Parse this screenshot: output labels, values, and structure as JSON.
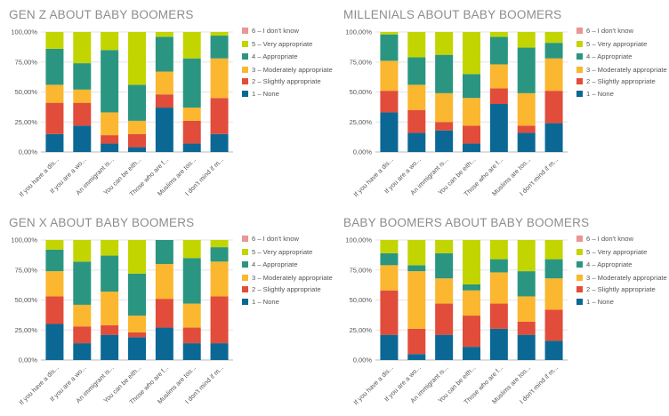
{
  "legend": {
    "colors": [
      "#e99694",
      "#c3d500",
      "#2a9681",
      "#fbb72f",
      "#e24c3a",
      "#0b6895"
    ]
  },
  "chart_data": [
    {
      "type": "bar",
      "stacked": true,
      "title": "GEN Z ABOUT BABY BOOMERS",
      "categories": [
        "If you have a dis...",
        "If you are a wo...",
        "An immigrant is...",
        "You can be eith...",
        "Those who are f...",
        "Muslims are too...",
        "I don't mind if m..."
      ],
      "yticks": [
        "0,00%",
        "25,00%",
        "50,00%",
        "75,00%",
        "100,00%"
      ],
      "ylim": [
        0,
        100
      ],
      "legend_position": "right",
      "grid": true,
      "series": [
        {
          "name": "1 – None",
          "values": [
            15,
            22,
            7,
            4,
            37,
            7,
            15
          ]
        },
        {
          "name": "2 – Slightly appropriate",
          "values": [
            26,
            19,
            7,
            11,
            11,
            19,
            30
          ]
        },
        {
          "name": "3 – Moderately appropriate",
          "values": [
            15,
            11,
            19,
            11,
            19,
            11,
            33
          ]
        },
        {
          "name": "4 – Appropriate",
          "values": [
            30,
            22,
            52,
            30,
            29,
            41,
            19
          ]
        },
        {
          "name": "5 – Very appropriate",
          "values": [
            14,
            26,
            15,
            44,
            4,
            22,
            3
          ]
        },
        {
          "name": "6 – I don't know",
          "values": [
            0,
            0,
            0,
            0,
            0,
            0,
            0
          ]
        }
      ]
    },
    {
      "type": "bar",
      "stacked": true,
      "title": "MILLENIALS ABOUT BABY BOOMERS",
      "categories": [
        "If you have a dis...",
        "If you are a wo...",
        "An immigrant is...",
        "You can be eith...",
        "Those who are f...",
        "Muslims are too...",
        "I don't mind if m..."
      ],
      "yticks": [
        "0,00%",
        "25,00%",
        "50,00%",
        "75,00%",
        "100,00%"
      ],
      "ylim": [
        0,
        100
      ],
      "legend_position": "right",
      "grid": true,
      "series": [
        {
          "name": "1 – None",
          "values": [
            33,
            16,
            18,
            7,
            40,
            16,
            24
          ]
        },
        {
          "name": "2 – Slightly appropriate",
          "values": [
            18,
            19,
            7,
            15,
            13,
            6,
            27
          ]
        },
        {
          "name": "3 – Moderately appropriate",
          "values": [
            25,
            21,
            24,
            23,
            20,
            27,
            27
          ]
        },
        {
          "name": "4 – Appropriate",
          "values": [
            22,
            23,
            32,
            20,
            23,
            38,
            13
          ]
        },
        {
          "name": "5 – Very appropriate",
          "values": [
            2,
            21,
            19,
            35,
            4,
            13,
            9
          ]
        },
        {
          "name": "6 – I don't know",
          "values": [
            0,
            0,
            0,
            0,
            0,
            0,
            0
          ]
        }
      ]
    },
    {
      "type": "bar",
      "stacked": true,
      "title": "GEN X ABOUT BABY BOOMERS",
      "categories": [
        "If you have a dis...",
        "If you are a wo...",
        "An immigrant is...",
        "You can be eith...",
        "Those who are f...",
        "Muslims are too...",
        "I don't mind if m..."
      ],
      "yticks": [
        "0,00%",
        "25,00%",
        "50,00%",
        "75,00%",
        "100,00%"
      ],
      "ylim": [
        0,
        100
      ],
      "legend_position": "right",
      "grid": true,
      "series": [
        {
          "name": "1 – None",
          "values": [
            30,
            14,
            21,
            19,
            27,
            14,
            14
          ]
        },
        {
          "name": "2 – Slightly appropriate",
          "values": [
            23,
            14,
            8,
            4,
            24,
            13,
            39
          ]
        },
        {
          "name": "3 – Moderately appropriate",
          "values": [
            21,
            18,
            28,
            14,
            29,
            20,
            29
          ]
        },
        {
          "name": "4 – Appropriate",
          "values": [
            18,
            36,
            30,
            35,
            20,
            38,
            12
          ]
        },
        {
          "name": "5 – Very appropriate",
          "values": [
            8,
            18,
            13,
            28,
            0,
            15,
            6
          ]
        },
        {
          "name": "6 – I don't know",
          "values": [
            0,
            0,
            0,
            0,
            0,
            0,
            0
          ]
        }
      ]
    },
    {
      "type": "bar",
      "stacked": true,
      "title": "BABY BOOMERS ABOUT BABY BOOMERS",
      "categories": [
        "If you have a dis...",
        "If you are a wo...",
        "An immigrant is...",
        "You can be eith...",
        "Those who are f...",
        "Muslims are too...",
        "I don't mind if m..."
      ],
      "yticks": [
        "0,00%",
        "25,00%",
        "50,00%",
        "75,00%",
        "100,00%"
      ],
      "ylim": [
        0,
        100
      ],
      "legend_position": "right",
      "grid": true,
      "series": [
        {
          "name": "1 – None",
          "values": [
            21,
            5,
            21,
            11,
            26,
            21,
            16
          ]
        },
        {
          "name": "2 – Slightly appropriate",
          "values": [
            37,
            21,
            26,
            26,
            21,
            11,
            26
          ]
        },
        {
          "name": "3 – Moderately appropriate",
          "values": [
            21,
            48,
            21,
            21,
            26,
            21,
            26
          ]
        },
        {
          "name": "4 – Appropriate",
          "values": [
            10,
            5,
            21,
            5,
            11,
            21,
            16
          ]
        },
        {
          "name": "5 – Very appropriate",
          "values": [
            11,
            21,
            11,
            37,
            16,
            26,
            16
          ]
        },
        {
          "name": "6 – I don't know",
          "values": [
            0,
            0,
            0,
            0,
            0,
            0,
            0
          ]
        }
      ]
    }
  ]
}
